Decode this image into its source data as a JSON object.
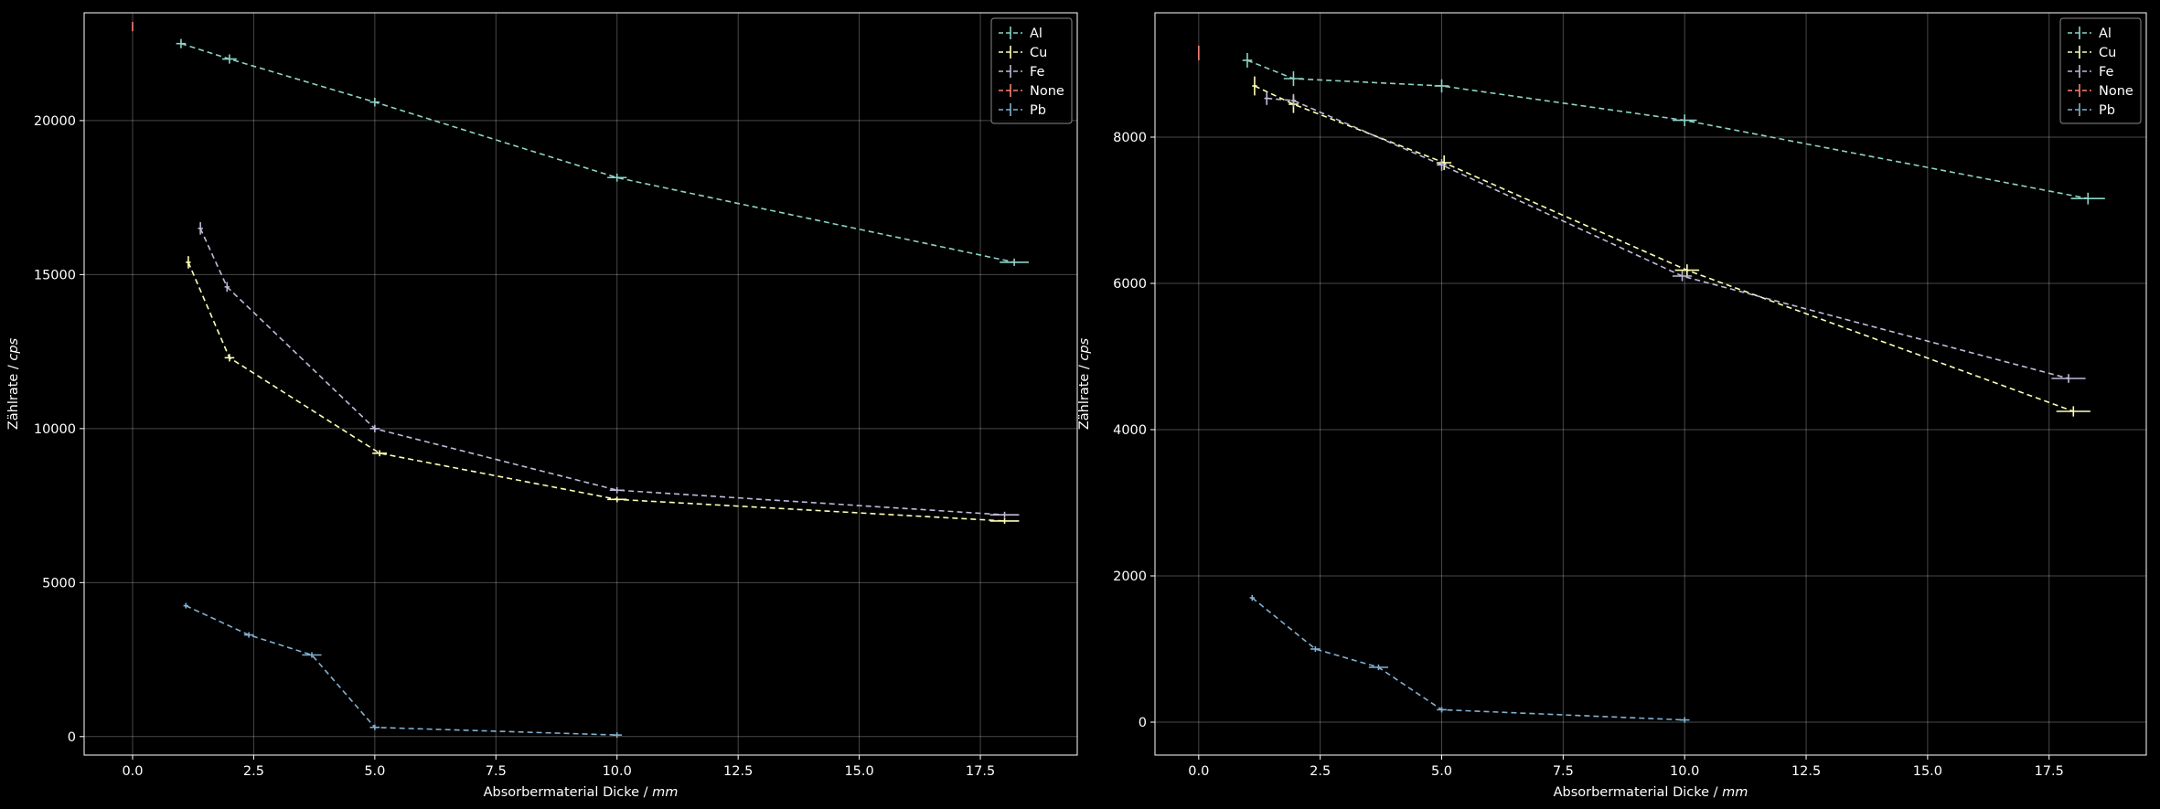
{
  "chart_data": [
    {
      "type": "line",
      "xlabel_text": "Absorbermaterial Dicke / ",
      "xlabel_unit": "mm",
      "ylabel_text": "Zählrate / ",
      "ylabel_unit": "cps",
      "xlim": [
        -1.0,
        19.5
      ],
      "ylim": [
        -600,
        23500
      ],
      "xticks": [
        0.0,
        2.5,
        5.0,
        7.5,
        10.0,
        12.5,
        15.0,
        17.5
      ],
      "xtick_labels": [
        "0.0",
        "2.5",
        "5.0",
        "7.5",
        "10.0",
        "12.5",
        "15.0",
        "17.5"
      ],
      "yticks": [
        0,
        5000,
        10000,
        15000,
        20000
      ],
      "ytick_labels": [
        "0",
        "5000",
        "10000",
        "15000",
        "20000"
      ],
      "grid": true,
      "legend_position": "top-right",
      "series": [
        {
          "name": "Al",
          "color": "#8dd3c7",
          "x": [
            1.0,
            2.0,
            5.0,
            10.0,
            18.2
          ],
          "y": [
            22500,
            22000,
            20600,
            18150,
            15400
          ],
          "xerr": [
            0.1,
            0.15,
            0.1,
            0.2,
            0.3
          ],
          "yerr": [
            150,
            150,
            140,
            130,
            120
          ]
        },
        {
          "name": "Cu",
          "color": "#feffb3",
          "x": [
            1.15,
            2.0,
            5.1,
            10.0,
            18.0
          ],
          "y": [
            15400,
            12300,
            9200,
            7700,
            7000
          ],
          "xerr": [
            0.05,
            0.1,
            0.15,
            0.2,
            0.3
          ],
          "yerr": [
            200,
            120,
            100,
            90,
            90
          ]
        },
        {
          "name": "Fe",
          "color": "#bfbbd9",
          "x": [
            1.4,
            1.95,
            5.0,
            10.0,
            18.0
          ],
          "y": [
            16500,
            14600,
            10000,
            8000,
            7200
          ],
          "xerr": [
            0.05,
            0.05,
            0.1,
            0.15,
            0.3
          ],
          "yerr": [
            200,
            160,
            120,
            100,
            100
          ]
        },
        {
          "name": "None",
          "color": "#fa8174",
          "x": [
            0.0
          ],
          "y": [
            23050
          ],
          "xerr": [
            0.0
          ],
          "yerr": [
            150
          ]
        },
        {
          "name": "Pb",
          "color": "#81b1d2",
          "x": [
            1.1,
            2.4,
            3.7,
            5.0,
            10.0
          ],
          "y": [
            4250,
            3300,
            2650,
            300,
            50
          ],
          "xerr": [
            0.05,
            0.1,
            0.2,
            0.1,
            0.1
          ],
          "yerr": [
            60,
            50,
            50,
            30,
            20
          ]
        }
      ]
    },
    {
      "type": "line",
      "xlabel_text": "Absorbermaterial Dicke / ",
      "xlabel_unit": "mm",
      "ylabel_text": "Zählrate / ",
      "ylabel_unit": "cps",
      "xlim": [
        -0.9,
        19.5
      ],
      "ylim": [
        -450,
        9700
      ],
      "xticks": [
        0.0,
        2.5,
        5.0,
        7.5,
        10.0,
        12.5,
        15.0,
        17.5
      ],
      "xtick_labels": [
        "0.0",
        "2.5",
        "5.0",
        "7.5",
        "10.0",
        "12.5",
        "15.0",
        "17.5"
      ],
      "yticks": [
        0,
        2000,
        4000,
        6000,
        8000
      ],
      "ytick_labels": [
        "0",
        "2000",
        "4000",
        "6000",
        "8000"
      ],
      "grid": true,
      "legend_position": "top-right",
      "series": [
        {
          "name": "Al",
          "color": "#8dd3c7",
          "x": [
            1.0,
            1.95,
            5.0,
            10.0,
            18.3
          ],
          "y": [
            9050,
            8800,
            8700,
            8230,
            7160
          ],
          "xerr": [
            0.1,
            0.2,
            0.15,
            0.25,
            0.35
          ],
          "yerr": [
            100,
            100,
            90,
            80,
            80
          ]
        },
        {
          "name": "Cu",
          "color": "#feffb3",
          "x": [
            1.15,
            1.95,
            5.05,
            10.05,
            18.0
          ],
          "y": [
            8700,
            8450,
            7650,
            6180,
            4250
          ],
          "xerr": [
            0.05,
            0.1,
            0.15,
            0.25,
            0.35
          ],
          "yerr": [
            130,
            120,
            100,
            80,
            70
          ]
        },
        {
          "name": "Fe",
          "color": "#bfbbd9",
          "x": [
            1.4,
            1.95,
            5.0,
            9.95,
            17.9
          ],
          "y": [
            8530,
            8500,
            7620,
            6100,
            4700
          ],
          "xerr": [
            0.05,
            0.05,
            0.1,
            0.2,
            0.35
          ],
          "yerr": [
            90,
            90,
            80,
            70,
            60
          ]
        },
        {
          "name": "None",
          "color": "#fa8174",
          "x": [
            0.0
          ],
          "y": [
            9150
          ],
          "xerr": [
            0.0
          ],
          "yerr": [
            100
          ]
        },
        {
          "name": "Pb",
          "color": "#81b1d2",
          "x": [
            1.1,
            2.4,
            3.7,
            5.0,
            10.0
          ],
          "y": [
            1700,
            1000,
            750,
            170,
            30
          ],
          "xerr": [
            0.05,
            0.1,
            0.2,
            0.1,
            0.1
          ],
          "yerr": [
            40,
            30,
            30,
            20,
            10
          ]
        }
      ]
    }
  ]
}
